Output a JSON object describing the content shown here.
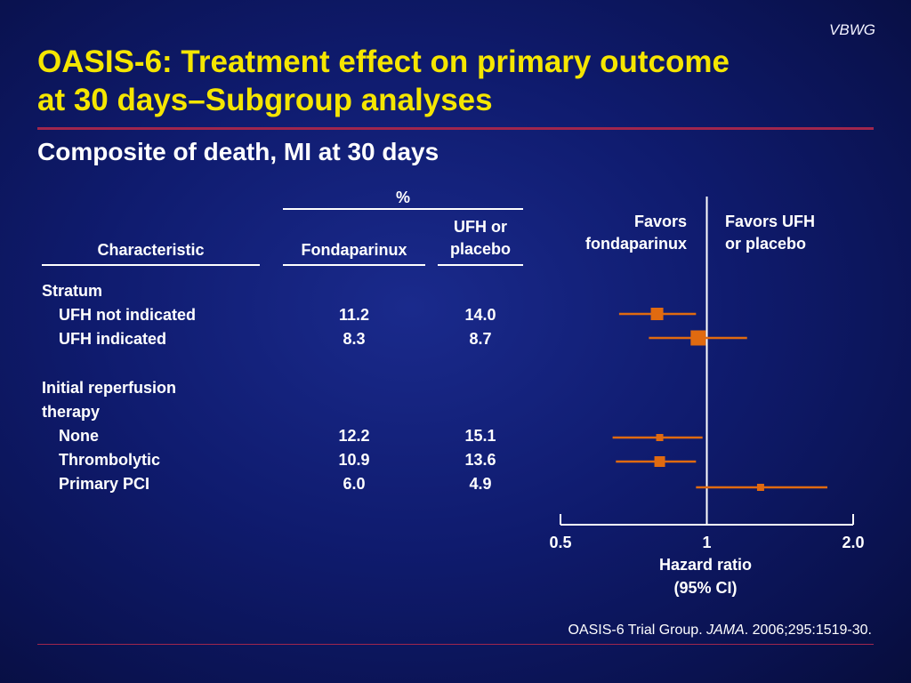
{
  "brand": "VBWG",
  "title_line1": "OASIS-6: Treatment effect on primary outcome",
  "title_line2": "at 30 days–Subgroup analyses",
  "subtitle": "Composite of death, MI at 30 days",
  "table": {
    "percent_header": "%",
    "col_characteristic": "Characteristic",
    "col_fonda": "Fondaparinux",
    "col_ufh_line1": "UFH or",
    "col_ufh_line2": "placebo",
    "groups": [
      {
        "heading": "Stratum",
        "heading_line2": "",
        "rows": [
          {
            "label": "UFH not indicated",
            "fonda": "11.2",
            "ufh": "14.0"
          },
          {
            "label": "UFH indicated",
            "fonda": "8.3",
            "ufh": "8.7"
          }
        ]
      },
      {
        "heading": "Initial reperfusion",
        "heading_line2": "therapy",
        "rows": [
          {
            "label": "None",
            "fonda": "12.2",
            "ufh": "15.1"
          },
          {
            "label": "Thrombolytic",
            "fonda": "10.9",
            "ufh": "13.6"
          },
          {
            "label": "Primary PCI",
            "fonda": "6.0",
            "ufh": "4.9"
          }
        ]
      }
    ]
  },
  "favors_left_line1": "Favors",
  "favors_left_line2": "fondaparinux",
  "favors_right_line1": "Favors UFH",
  "favors_right_line2": "or placebo",
  "axis_title_line1": "Hazard ratio",
  "axis_title_line2": "(95% CI)",
  "citation_pre": "OASIS-6 Trial Group. ",
  "citation_journal": "JAMA",
  "citation_post": ". 2006;295:1519-30.",
  "colors": {
    "title": "#f5e600",
    "rule": "#a0264d",
    "marker": "#e06a10"
  },
  "chart_data": {
    "type": "forest",
    "x_scale": "log",
    "xlim": [
      0.5,
      2.0
    ],
    "x_ticks": [
      {
        "value": 0.5,
        "label": "0.5"
      },
      {
        "value": 1,
        "label": "1"
      },
      {
        "value": 2.0,
        "label": "2.0"
      }
    ],
    "reference_line": 1,
    "points": [
      {
        "label": "UFH not indicated",
        "hr": 0.79,
        "ci_low": 0.66,
        "ci_high": 0.95,
        "marker": "large"
      },
      {
        "label": "UFH indicated",
        "hr": 0.96,
        "ci_low": 0.76,
        "ci_high": 1.21,
        "marker": "largest"
      },
      {
        "label": "None",
        "hr": 0.8,
        "ci_low": 0.64,
        "ci_high": 0.98,
        "marker": "small"
      },
      {
        "label": "Thrombolytic",
        "hr": 0.8,
        "ci_low": 0.65,
        "ci_high": 0.95,
        "marker": "medium"
      },
      {
        "label": "Primary PCI",
        "hr": 1.29,
        "ci_low": 0.95,
        "ci_high": 1.77,
        "marker": "small"
      }
    ]
  }
}
